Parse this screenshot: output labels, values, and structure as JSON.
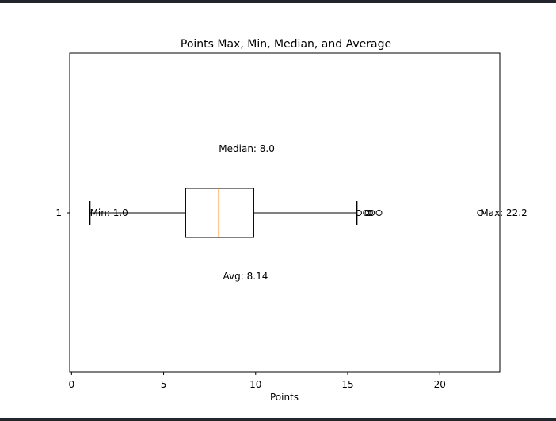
{
  "chart_data": {
    "type": "boxplot",
    "title": "Points Max, Min, Median, and Average",
    "xlabel": "Points",
    "ylabel": "",
    "orientation": "horizontal",
    "xlim": [
      -0.1,
      23.26
    ],
    "x_ticks": [
      0,
      5,
      10,
      15,
      20
    ],
    "y_ticks": [
      "1"
    ],
    "grid": false,
    "box": {
      "position": 1,
      "whisker_low": 1.0,
      "q1": 6.2,
      "median": 8.0,
      "q3": 9.9,
      "whisker_high": 15.5,
      "fliers": [
        15.6,
        16.0,
        16.1,
        16.2,
        16.3,
        16.7,
        22.2
      ]
    },
    "annotations": {
      "min": "Min: 1.0",
      "max": "Max: 22.2",
      "median": "Median: 8.0",
      "avg": "Avg: 8.14"
    },
    "colors": {
      "median_line": "#ff7f0e",
      "box": "#000000"
    }
  }
}
